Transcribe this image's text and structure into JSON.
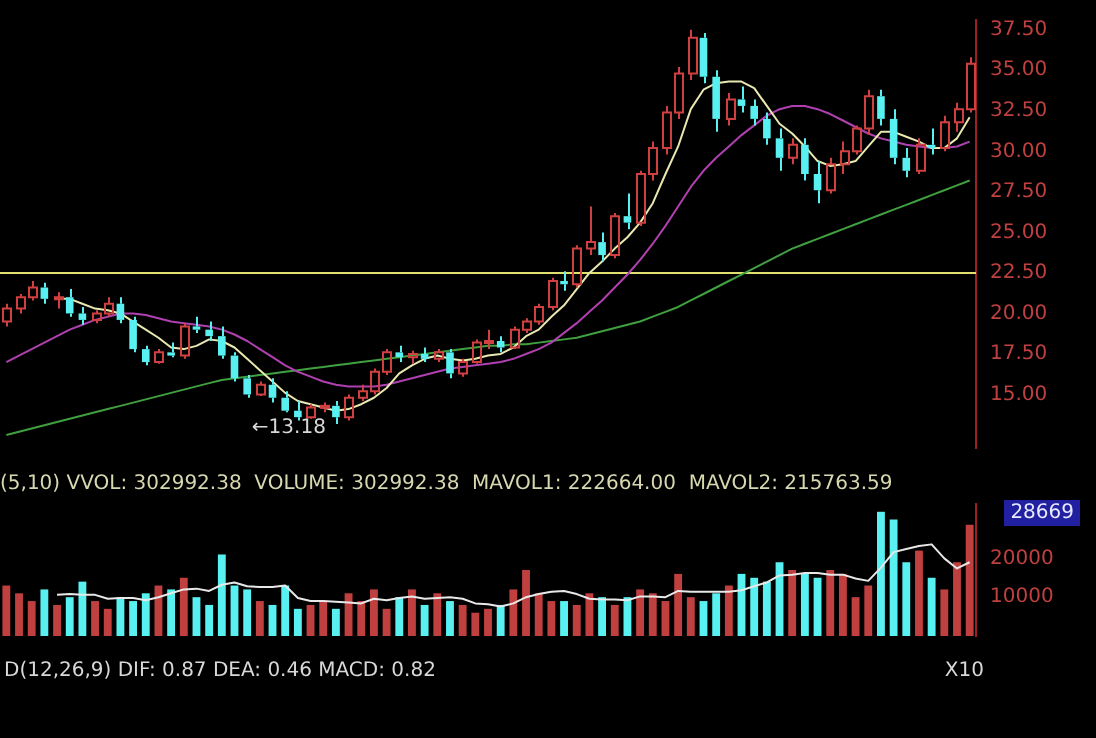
{
  "chart_data": [
    {
      "type": "candlestick",
      "categories": [
        null,
        null,
        null,
        null,
        null,
        null,
        null,
        null,
        null,
        null,
        null,
        null,
        null,
        null,
        null,
        null,
        null,
        null,
        null,
        null,
        null,
        null,
        null,
        null,
        null,
        null,
        null,
        null,
        null,
        null,
        null,
        null,
        null,
        null,
        null,
        null,
        null,
        null,
        null,
        null,
        null,
        null,
        null,
        null,
        null,
        null,
        null,
        null,
        null,
        null,
        null,
        null,
        null,
        null,
        null,
        null,
        null,
        null,
        null,
        null,
        null,
        null,
        null,
        null,
        null,
        null,
        null,
        null,
        null,
        null,
        null,
        null,
        null,
        null,
        null,
        null,
        null
      ],
      "ohlc": [
        [
          19.5,
          20.6,
          19.2,
          20.3
        ],
        [
          20.3,
          21.2,
          20.0,
          21.0
        ],
        [
          21.0,
          22.0,
          20.8,
          21.6
        ],
        [
          21.6,
          21.9,
          20.6,
          20.9
        ],
        [
          20.9,
          21.3,
          20.3,
          21.0
        ],
        [
          21.0,
          21.5,
          19.8,
          20.0
        ],
        [
          20.0,
          20.4,
          19.3,
          19.6
        ],
        [
          19.6,
          20.2,
          19.4,
          20.0
        ],
        [
          20.0,
          21.0,
          19.8,
          20.6
        ],
        [
          20.6,
          21.0,
          19.4,
          19.6
        ],
        [
          19.6,
          19.8,
          17.6,
          17.8
        ],
        [
          17.8,
          18.0,
          16.8,
          17.0
        ],
        [
          17.0,
          17.8,
          16.9,
          17.6
        ],
        [
          17.6,
          18.2,
          17.3,
          17.4
        ],
        [
          17.4,
          19.4,
          17.2,
          19.2
        ],
        [
          19.2,
          19.8,
          18.8,
          19.0
        ],
        [
          19.0,
          19.5,
          18.3,
          18.6
        ],
        [
          18.6,
          19.2,
          17.2,
          17.4
        ],
        [
          17.4,
          17.6,
          15.8,
          16.0
        ],
        [
          16.0,
          16.2,
          14.8,
          15.0
        ],
        [
          15.0,
          15.8,
          14.9,
          15.6
        ],
        [
          15.6,
          16.0,
          14.5,
          14.8
        ],
        [
          14.8,
          15.2,
          13.9,
          14.0
        ],
        [
          14.0,
          14.6,
          13.4,
          13.6
        ],
        [
          13.6,
          14.4,
          13.5,
          14.2
        ],
        [
          14.2,
          14.5,
          13.9,
          14.3
        ],
        [
          14.3,
          14.6,
          13.18,
          13.6
        ],
        [
          13.6,
          15.0,
          13.4,
          14.8
        ],
        [
          14.8,
          15.6,
          14.6,
          15.2
        ],
        [
          15.2,
          16.6,
          15.0,
          16.4
        ],
        [
          16.4,
          17.8,
          16.2,
          17.6
        ],
        [
          17.6,
          18.0,
          17.0,
          17.3
        ],
        [
          17.3,
          17.7,
          16.9,
          17.5
        ],
        [
          17.5,
          17.9,
          17.0,
          17.2
        ],
        [
          17.2,
          17.8,
          17.0,
          17.6
        ],
        [
          17.6,
          17.8,
          16.0,
          16.3
        ],
        [
          16.3,
          17.2,
          16.1,
          17.0
        ],
        [
          17.0,
          18.4,
          16.9,
          18.2
        ],
        [
          18.2,
          19.0,
          17.8,
          18.3
        ],
        [
          18.3,
          18.6,
          17.6,
          17.9
        ],
        [
          17.9,
          19.2,
          17.8,
          19.0
        ],
        [
          19.0,
          19.7,
          18.8,
          19.5
        ],
        [
          19.5,
          20.6,
          19.3,
          20.4
        ],
        [
          20.4,
          22.2,
          20.2,
          22.0
        ],
        [
          22.0,
          22.6,
          21.4,
          21.8
        ],
        [
          21.8,
          24.2,
          21.6,
          24.0
        ],
        [
          24.0,
          26.6,
          23.6,
          24.4
        ],
        [
          24.4,
          25.0,
          23.2,
          23.6
        ],
        [
          23.6,
          26.2,
          23.4,
          26.0
        ],
        [
          26.0,
          27.4,
          25.2,
          25.6
        ],
        [
          25.6,
          28.8,
          25.4,
          28.6
        ],
        [
          28.6,
          30.6,
          28.2,
          30.2
        ],
        [
          30.2,
          32.8,
          29.8,
          32.4
        ],
        [
          32.4,
          35.2,
          32.0,
          34.8
        ],
        [
          34.8,
          37.5,
          34.4,
          37.0
        ],
        [
          37.0,
          37.3,
          34.2,
          34.6
        ],
        [
          34.6,
          35.0,
          31.2,
          32.0
        ],
        [
          32.0,
          33.6,
          31.6,
          33.2
        ],
        [
          33.2,
          34.0,
          32.4,
          32.8
        ],
        [
          32.8,
          33.2,
          31.6,
          32.0
        ],
        [
          32.0,
          32.4,
          30.4,
          30.8
        ],
        [
          30.8,
          31.4,
          28.8,
          29.6
        ],
        [
          29.6,
          30.8,
          29.2,
          30.4
        ],
        [
          30.4,
          30.8,
          28.2,
          28.6
        ],
        [
          28.6,
          29.4,
          26.8,
          27.6
        ],
        [
          27.6,
          29.6,
          27.4,
          29.2
        ],
        [
          29.2,
          30.6,
          28.6,
          30.0
        ],
        [
          30.0,
          31.6,
          29.8,
          31.4
        ],
        [
          31.4,
          33.8,
          31.0,
          33.4
        ],
        [
          33.4,
          33.8,
          31.6,
          32.0
        ],
        [
          32.0,
          32.6,
          29.2,
          29.6
        ],
        [
          29.6,
          30.2,
          28.4,
          28.8
        ],
        [
          28.8,
          30.8,
          28.6,
          30.4
        ],
        [
          30.4,
          31.4,
          29.8,
          30.2
        ],
        [
          30.2,
          32.2,
          30.0,
          31.8
        ],
        [
          31.8,
          33.0,
          31.2,
          32.6
        ],
        [
          32.6,
          35.8,
          32.4,
          35.4
        ]
      ],
      "colors": [
        "#d04040",
        "#d04040",
        "#d04040",
        "#58f0f0",
        "#d04040",
        "#58f0f0",
        "#58f0f0",
        "#d04040",
        "#d04040",
        "#58f0f0",
        "#58f0f0",
        "#58f0f0",
        "#d04040",
        "#58f0f0",
        "#d04040",
        "#58f0f0",
        "#58f0f0",
        "#58f0f0",
        "#58f0f0",
        "#58f0f0",
        "#d04040",
        "#58f0f0",
        "#58f0f0",
        "#58f0f0",
        "#d04040",
        "#d04040",
        "#58f0f0",
        "#d04040",
        "#d04040",
        "#d04040",
        "#d04040",
        "#58f0f0",
        "#d04040",
        "#58f0f0",
        "#d04040",
        "#58f0f0",
        "#d04040",
        "#d04040",
        "#d04040",
        "#58f0f0",
        "#d04040",
        "#d04040",
        "#d04040",
        "#d04040",
        "#58f0f0",
        "#d04040",
        "#d04040",
        "#58f0f0",
        "#d04040",
        "#58f0f0",
        "#d04040",
        "#d04040",
        "#d04040",
        "#d04040",
        "#d04040",
        "#58f0f0",
        "#58f0f0",
        "#d04040",
        "#58f0f0",
        "#58f0f0",
        "#58f0f0",
        "#58f0f0",
        "#d04040",
        "#58f0f0",
        "#58f0f0",
        "#d04040",
        "#d04040",
        "#d04040",
        "#d04040",
        "#58f0f0",
        "#58f0f0",
        "#58f0f0",
        "#d04040",
        "#58f0f0",
        "#d04040",
        "#d04040",
        "#d04040"
      ],
      "series": [
        {
          "type": "line",
          "color": "#e8e8b0",
          "values": [
            null,
            null,
            null,
            null,
            20.9,
            20.9,
            20.6,
            20.3,
            20.2,
            20.0,
            19.5,
            19.0,
            18.5,
            17.9,
            17.8,
            18.0,
            18.4,
            18.3,
            17.9,
            17.2,
            16.5,
            15.8,
            15.1,
            14.6,
            14.4,
            14.2,
            14.0,
            14.1,
            14.4,
            14.8,
            15.4,
            16.3,
            16.8,
            17.2,
            17.4,
            17.2,
            17.1,
            17.2,
            17.4,
            17.5,
            17.9,
            18.6,
            19.0,
            19.8,
            20.5,
            21.5,
            22.5,
            23.2,
            24.0,
            24.7,
            25.6,
            26.8,
            28.6,
            30.3,
            32.6,
            33.8,
            34.2,
            34.3,
            34.3,
            33.9,
            32.8,
            31.7,
            31.1,
            30.3,
            29.4,
            29.1,
            29.2,
            29.4,
            30.3,
            31.2,
            31.2,
            30.9,
            30.6,
            30.2,
            30.2,
            30.8,
            32.1
          ]
        },
        {
          "type": "line",
          "color": "#b040b0",
          "values": [
            17.0,
            17.4,
            17.8,
            18.2,
            18.6,
            19.0,
            19.3,
            19.6,
            19.8,
            20.0,
            20.0,
            19.9,
            19.7,
            19.5,
            19.4,
            19.3,
            19.2,
            19.0,
            18.7,
            18.3,
            17.8,
            17.3,
            16.8,
            16.4,
            16.1,
            15.8,
            15.6,
            15.5,
            15.5,
            15.5,
            15.6,
            15.8,
            16.0,
            16.2,
            16.4,
            16.6,
            16.7,
            16.8,
            16.9,
            17.0,
            17.2,
            17.5,
            17.8,
            18.2,
            18.8,
            19.4,
            20.1,
            20.8,
            21.6,
            22.4,
            23.3,
            24.3,
            25.4,
            26.6,
            27.8,
            28.8,
            29.6,
            30.3,
            31.0,
            31.6,
            32.2,
            32.6,
            32.8,
            32.8,
            32.6,
            32.3,
            31.9,
            31.5,
            31.1,
            30.8,
            30.6,
            30.4,
            30.3,
            30.2,
            30.2,
            30.3,
            30.6
          ]
        },
        {
          "type": "line",
          "color": "#40a040",
          "values": [
            12.5,
            12.7,
            12.9,
            13.1,
            13.3,
            13.5,
            13.7,
            13.9,
            14.1,
            14.3,
            14.5,
            14.7,
            14.9,
            15.1,
            15.3,
            15.5,
            15.7,
            15.9,
            16.0,
            16.1,
            16.2,
            16.3,
            16.4,
            16.5,
            16.6,
            16.7,
            16.8,
            16.9,
            17.0,
            17.1,
            17.2,
            17.3,
            17.4,
            17.5,
            17.6,
            17.7,
            17.8,
            17.9,
            18.0,
            18.0,
            18.1,
            18.1,
            18.2,
            18.3,
            18.4,
            18.5,
            18.7,
            18.9,
            19.1,
            19.3,
            19.5,
            19.8,
            20.1,
            20.4,
            20.8,
            21.2,
            21.6,
            22.0,
            22.4,
            22.8,
            23.2,
            23.6,
            24.0,
            24.3,
            24.6,
            24.9,
            25.2,
            25.5,
            25.8,
            26.1,
            26.4,
            26.7,
            27.0,
            27.3,
            27.6,
            27.9,
            28.2
          ]
        }
      ],
      "ylim": [
        11.7,
        38.1
      ],
      "yticks": [
        {
          "value": 15,
          "label": "15.00"
        },
        {
          "value": 17.5,
          "label": "17.50"
        },
        {
          "value": 20,
          "label": "20.00"
        },
        {
          "value": 22.5,
          "label": "22.50"
        },
        {
          "value": 25,
          "label": "25.00"
        },
        {
          "value": 27.5,
          "label": "27.50"
        },
        {
          "value": 30,
          "label": "30.00"
        },
        {
          "value": 32.5,
          "label": "32.50"
        },
        {
          "value": 35,
          "label": "35.00"
        },
        {
          "value": 37.5,
          "label": "37.50"
        }
      ],
      "ref_lines": [
        {
          "axis": "y",
          "value": 22.5,
          "color": "#e0e070"
        }
      ],
      "annotations": [
        {
          "text": "←13.18",
          "y": 13.18
        }
      ],
      "tick_labels": "y",
      "grid": false,
      "legend": false,
      "marker": "none"
    },
    {
      "type": "bar",
      "title": "(5,10) VVOL: 302992.38  VOLUME: 302992.38  MAVOL1: 222664.00  MAVOL2: 215763.59",
      "categories": [
        null,
        null,
        null,
        null,
        null,
        null,
        null,
        null,
        null,
        null,
        null,
        null,
        null,
        null,
        null,
        null,
        null,
        null,
        null,
        null,
        null,
        null,
        null,
        null,
        null,
        null,
        null,
        null,
        null,
        null,
        null,
        null,
        null,
        null,
        null,
        null,
        null,
        null,
        null,
        null,
        null,
        null,
        null,
        null,
        null,
        null,
        null,
        null,
        null,
        null,
        null,
        null,
        null,
        null,
        null,
        null,
        null,
        null,
        null,
        null,
        null,
        null,
        null,
        null,
        null,
        null,
        null,
        null,
        null,
        null,
        null,
        null,
        null,
        null,
        null,
        null,
        null
      ],
      "series": [
        {
          "type": "bar",
          "values": [
            13000,
            11000,
            9000,
            12000,
            8000,
            10000,
            14000,
            9000,
            7000,
            10000,
            9000,
            11000,
            13000,
            12000,
            15000,
            10000,
            8000,
            21000,
            13000,
            12000,
            9000,
            8000,
            13000,
            7000,
            8000,
            9000,
            7000,
            11000,
            9000,
            12000,
            7000,
            10000,
            12000,
            8000,
            11000,
            9000,
            8000,
            6000,
            7000,
            8000,
            12000,
            17000,
            11000,
            9000,
            9000,
            8000,
            11000,
            10000,
            8000,
            10000,
            12000,
            11000,
            9000,
            16000,
            10000,
            9000,
            11000,
            13000,
            16000,
            15000,
            14000,
            19000,
            17000,
            16000,
            15000,
            17000,
            16000,
            10000,
            13000,
            32000,
            30000,
            19000,
            22000,
            15000,
            12000,
            19000,
            28669
          ],
          "colors": [
            "#c04040",
            "#c04040",
            "#c04040",
            "#58f0f0",
            "#c04040",
            "#58f0f0",
            "#58f0f0",
            "#c04040",
            "#c04040",
            "#58f0f0",
            "#58f0f0",
            "#58f0f0",
            "#c04040",
            "#58f0f0",
            "#c04040",
            "#58f0f0",
            "#58f0f0",
            "#58f0f0",
            "#58f0f0",
            "#58f0f0",
            "#c04040",
            "#58f0f0",
            "#58f0f0",
            "#58f0f0",
            "#c04040",
            "#c04040",
            "#58f0f0",
            "#c04040",
            "#c04040",
            "#c04040",
            "#c04040",
            "#58f0f0",
            "#c04040",
            "#58f0f0",
            "#c04040",
            "#58f0f0",
            "#c04040",
            "#c04040",
            "#c04040",
            "#58f0f0",
            "#c04040",
            "#c04040",
            "#c04040",
            "#c04040",
            "#58f0f0",
            "#c04040",
            "#c04040",
            "#58f0f0",
            "#c04040",
            "#58f0f0",
            "#c04040",
            "#c04040",
            "#c04040",
            "#c04040",
            "#c04040",
            "#58f0f0",
            "#58f0f0",
            "#c04040",
            "#58f0f0",
            "#58f0f0",
            "#58f0f0",
            "#58f0f0",
            "#c04040",
            "#58f0f0",
            "#58f0f0",
            "#c04040",
            "#c04040",
            "#c04040",
            "#c04040",
            "#58f0f0",
            "#58f0f0",
            "#58f0f0",
            "#c04040",
            "#58f0f0",
            "#c04040",
            "#c04040",
            "#c04040"
          ]
        },
        {
          "type": "line",
          "color": "#e8e8e8",
          "values": [
            null,
            null,
            null,
            null,
            10600,
            10800,
            10600,
            10600,
            9600,
            9800,
            9800,
            9200,
            10000,
            11000,
            12000,
            12200,
            11600,
            13200,
            13800,
            12800,
            12600,
            12600,
            13000,
            9800,
            9000,
            9000,
            8800,
            8600,
            8400,
            9600,
            9200,
            9800,
            10200,
            9600,
            9800,
            10000,
            9600,
            8400,
            8200,
            7600,
            8400,
            10000,
            10800,
            11400,
            11600,
            10800,
            9600,
            9400,
            9400,
            9200,
            10200,
            10200,
            10000,
            11600,
            11400,
            11400,
            11400,
            11400,
            11800,
            12800,
            13800,
            15600,
            15800,
            16200,
            16200,
            15800,
            15800,
            14800,
            14200,
            17600,
            21600,
            22400,
            23200,
            23600,
            20000,
            17400,
            19000
          ]
        }
      ],
      "ylim": [
        0,
        34000
      ],
      "yticks": [
        10000,
        20000
      ],
      "annotations": [
        "28669",
        "X10",
        "D(12,26,9) DIF: 0.87  DEA: 0.46  MACD: 0.82"
      ],
      "tick_labels": "y",
      "grid": false,
      "legend": false,
      "marker": "none"
    }
  ]
}
